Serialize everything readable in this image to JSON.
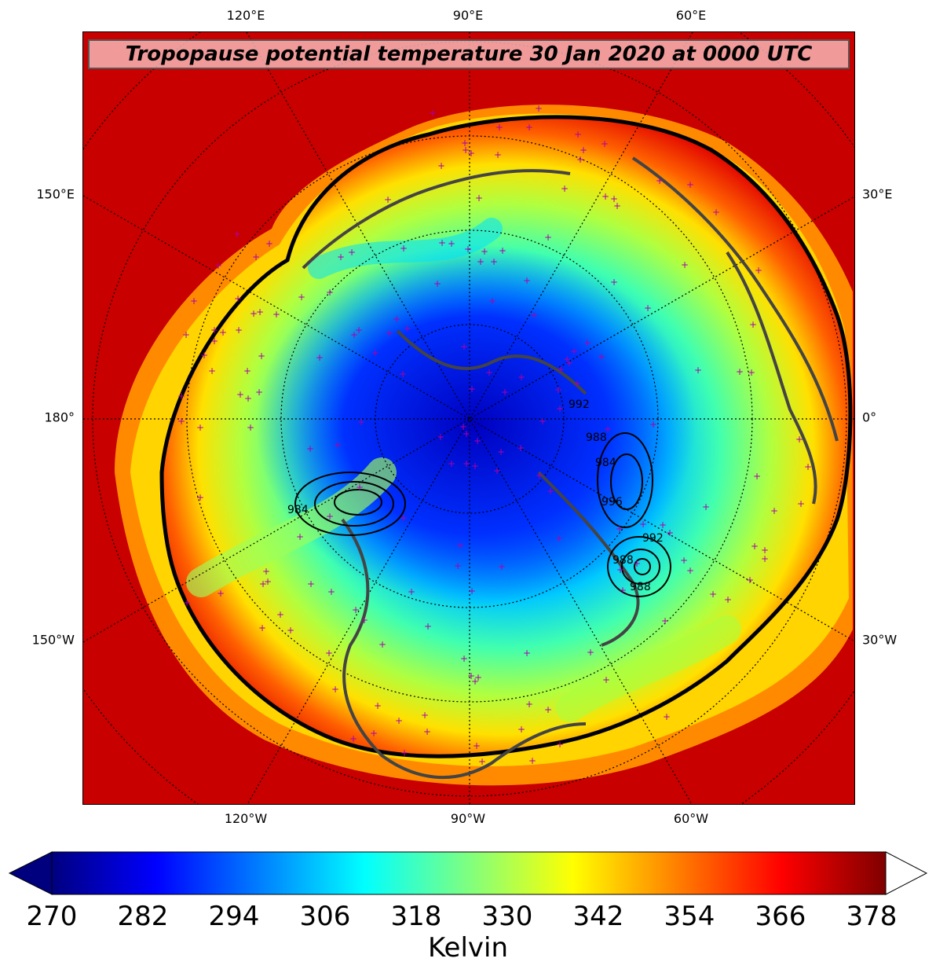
{
  "title": "Tropopause potential temperature 30 Jan 2020 at 0000 UTC",
  "longitude_labels": {
    "top": [
      "120°E",
      "90°E",
      "60°E"
    ],
    "bottom": [
      "120°W",
      "90°W",
      "60°W"
    ],
    "left": [
      "150°E",
      "180°",
      "150°W"
    ],
    "right": [
      "30°E",
      "0°",
      "30°W"
    ]
  },
  "pressure_contour_labels": [
    "984",
    "988",
    "992",
    "996",
    "984",
    "988",
    "992",
    "988"
  ],
  "colorbar": {
    "label": "Kelvin",
    "ticks": [
      "270",
      "282",
      "294",
      "306",
      "318",
      "330",
      "342",
      "354",
      "366",
      "378"
    ],
    "min": 270,
    "max": 378,
    "extend": "both",
    "colormap": "jet",
    "colors": [
      "#00007f",
      "#0000ff",
      "#007fff",
      "#00ffff",
      "#7fff7f",
      "#ffff00",
      "#ff7f00",
      "#ff0000",
      "#7f0000"
    ]
  },
  "colors": {
    "coastline": "#444444",
    "station_marker": "#aa00aa",
    "grid": "#000000",
    "title_box": "#f5c4c4"
  }
}
